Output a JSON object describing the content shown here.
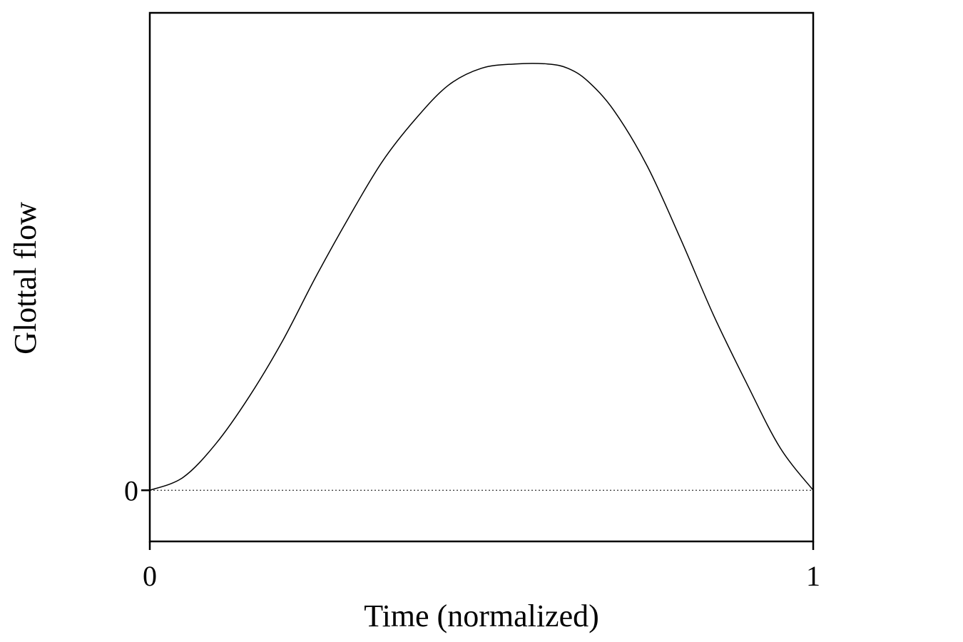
{
  "chart_data": {
    "type": "line",
    "title": "",
    "xlabel": "Time (normalized)",
    "ylabel": "Glottal flow",
    "xlim": [
      0,
      1
    ],
    "ylim": [
      -0.12,
      1.12
    ],
    "x_ticks": [
      {
        "value": 0,
        "label": "0"
      },
      {
        "value": 1,
        "label": "1"
      }
    ],
    "y_ticks": [
      {
        "value": 0,
        "label": "0"
      }
    ],
    "zero_line": {
      "y": 0,
      "style": "dotted"
    },
    "grid": false,
    "legend": "none",
    "series": [
      {
        "color": "#000000",
        "x": [
          0,
          0.05,
          0.1,
          0.15,
          0.2,
          0.25,
          0.3,
          0.35,
          0.4,
          0.45,
          0.5,
          0.55,
          0.6,
          0.63,
          0.66,
          0.7,
          0.75,
          0.8,
          0.85,
          0.9,
          0.95,
          1.0
        ],
        "y": [
          0,
          0.03,
          0.11,
          0.22,
          0.35,
          0.5,
          0.64,
          0.77,
          0.87,
          0.95,
          0.99,
          1.0,
          1.0,
          0.99,
          0.96,
          0.89,
          0.76,
          0.59,
          0.41,
          0.25,
          0.1,
          0
        ]
      }
    ]
  }
}
